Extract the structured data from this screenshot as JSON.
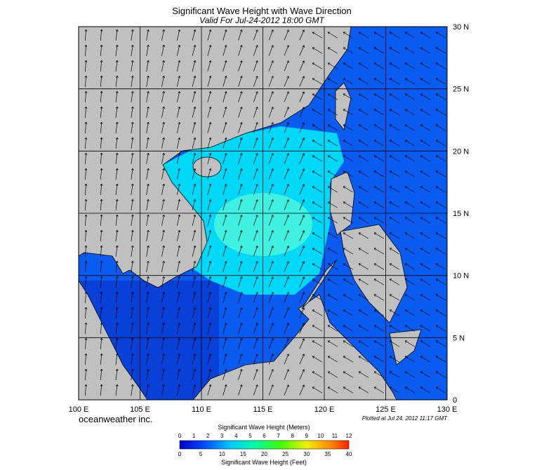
{
  "header": {
    "title": "Significant Wave Height with Wave Direction",
    "subtitle": "Valid For Jul-24-2012 18:00 GMT"
  },
  "map": {
    "lat_labels": [
      "30 N",
      "25 N",
      "20 N",
      "15 N",
      "10 N",
      "5 N",
      "0"
    ],
    "lon_labels": [
      "100 E",
      "105 E",
      "110 E",
      "115 E",
      "120 E",
      "125 E",
      "130 E"
    ]
  },
  "footer": {
    "brand": "oceanweather inc.",
    "plotted": "Plotted at Jul 24, 2012 11:17 GMT"
  },
  "legend": {
    "meters_title": "Significant Wave Height (Meters)",
    "meters_ticks": [
      "0",
      "1",
      "2",
      "3",
      "4",
      "5",
      "6",
      "7",
      "8",
      "9",
      "10",
      "11",
      "12"
    ],
    "feet_ticks": [
      "0",
      "5",
      "10",
      "15",
      "20",
      "25",
      "30",
      "35",
      "40"
    ],
    "feet_title": "Significant Wave Height (Feet)"
  }
}
